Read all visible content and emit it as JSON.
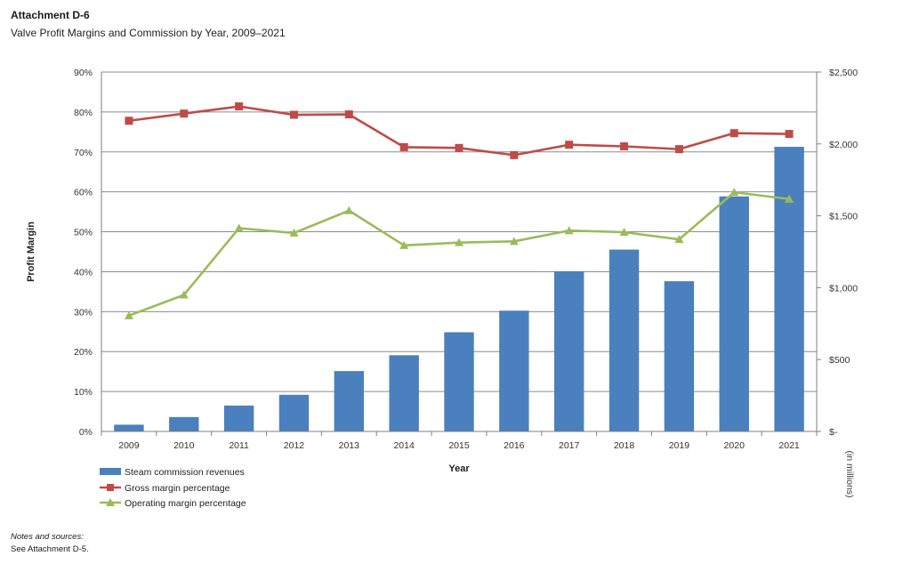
{
  "header": {
    "title": "Attachment D-6",
    "subtitle": "Valve Profit Margins and Commission by Year, 2009–2021"
  },
  "notes": {
    "label": "Notes and sources:",
    "text": "See Attachment D-5."
  },
  "colors": {
    "bar": "#4a80bd",
    "gross": "#be4b48",
    "operating": "#9bbb59",
    "grid": "#8c8c8c",
    "axis": "#7f7f7f"
  },
  "chart_data": {
    "type": "bar+line",
    "categories": [
      "2009",
      "2010",
      "2011",
      "2012",
      "2013",
      "2014",
      "2015",
      "2016",
      "2017",
      "2018",
      "2019",
      "2020",
      "2021"
    ],
    "xlabel": "Year",
    "ylabel_left": "Profit Margin",
    "ylabel_right": "(in millions)",
    "left_axis": {
      "min": 0,
      "max": 90,
      "step": 10,
      "tick_labels": [
        "0%",
        "10%",
        "20%",
        "30%",
        "40%",
        "50%",
        "60%",
        "70%",
        "80%",
        "90%"
      ]
    },
    "right_axis": {
      "min": 0,
      "max": 2500,
      "step": 500,
      "tick_labels": [
        "$-",
        "$500",
        "$1,000",
        "$1,500",
        "$2,000",
        "$2,500"
      ]
    },
    "series": [
      {
        "name": "Steam commission revenues",
        "type": "bar",
        "axis": "right",
        "values": [
          47,
          100,
          180,
          255,
          420,
          530,
          690,
          840,
          1115,
          1265,
          1045,
          1635,
          1980
        ]
      },
      {
        "name": "Gross margin percentage",
        "type": "line",
        "axis": "left",
        "marker": "square",
        "values": [
          77.8,
          79.6,
          81.4,
          79.3,
          79.4,
          71.2,
          71.0,
          69.2,
          71.8,
          71.4,
          70.7,
          74.7,
          74.5
        ]
      },
      {
        "name": "Operating margin percentage",
        "type": "line",
        "axis": "left",
        "marker": "triangle",
        "values": [
          29.0,
          34.2,
          50.9,
          49.7,
          55.3,
          46.6,
          47.3,
          47.6,
          50.3,
          49.9,
          48.1,
          59.9,
          58.2
        ]
      }
    ],
    "legend": {
      "position": "bottom-left",
      "items": [
        "Steam commission revenues",
        "Gross margin percentage",
        "Operating margin percentage"
      ]
    }
  }
}
